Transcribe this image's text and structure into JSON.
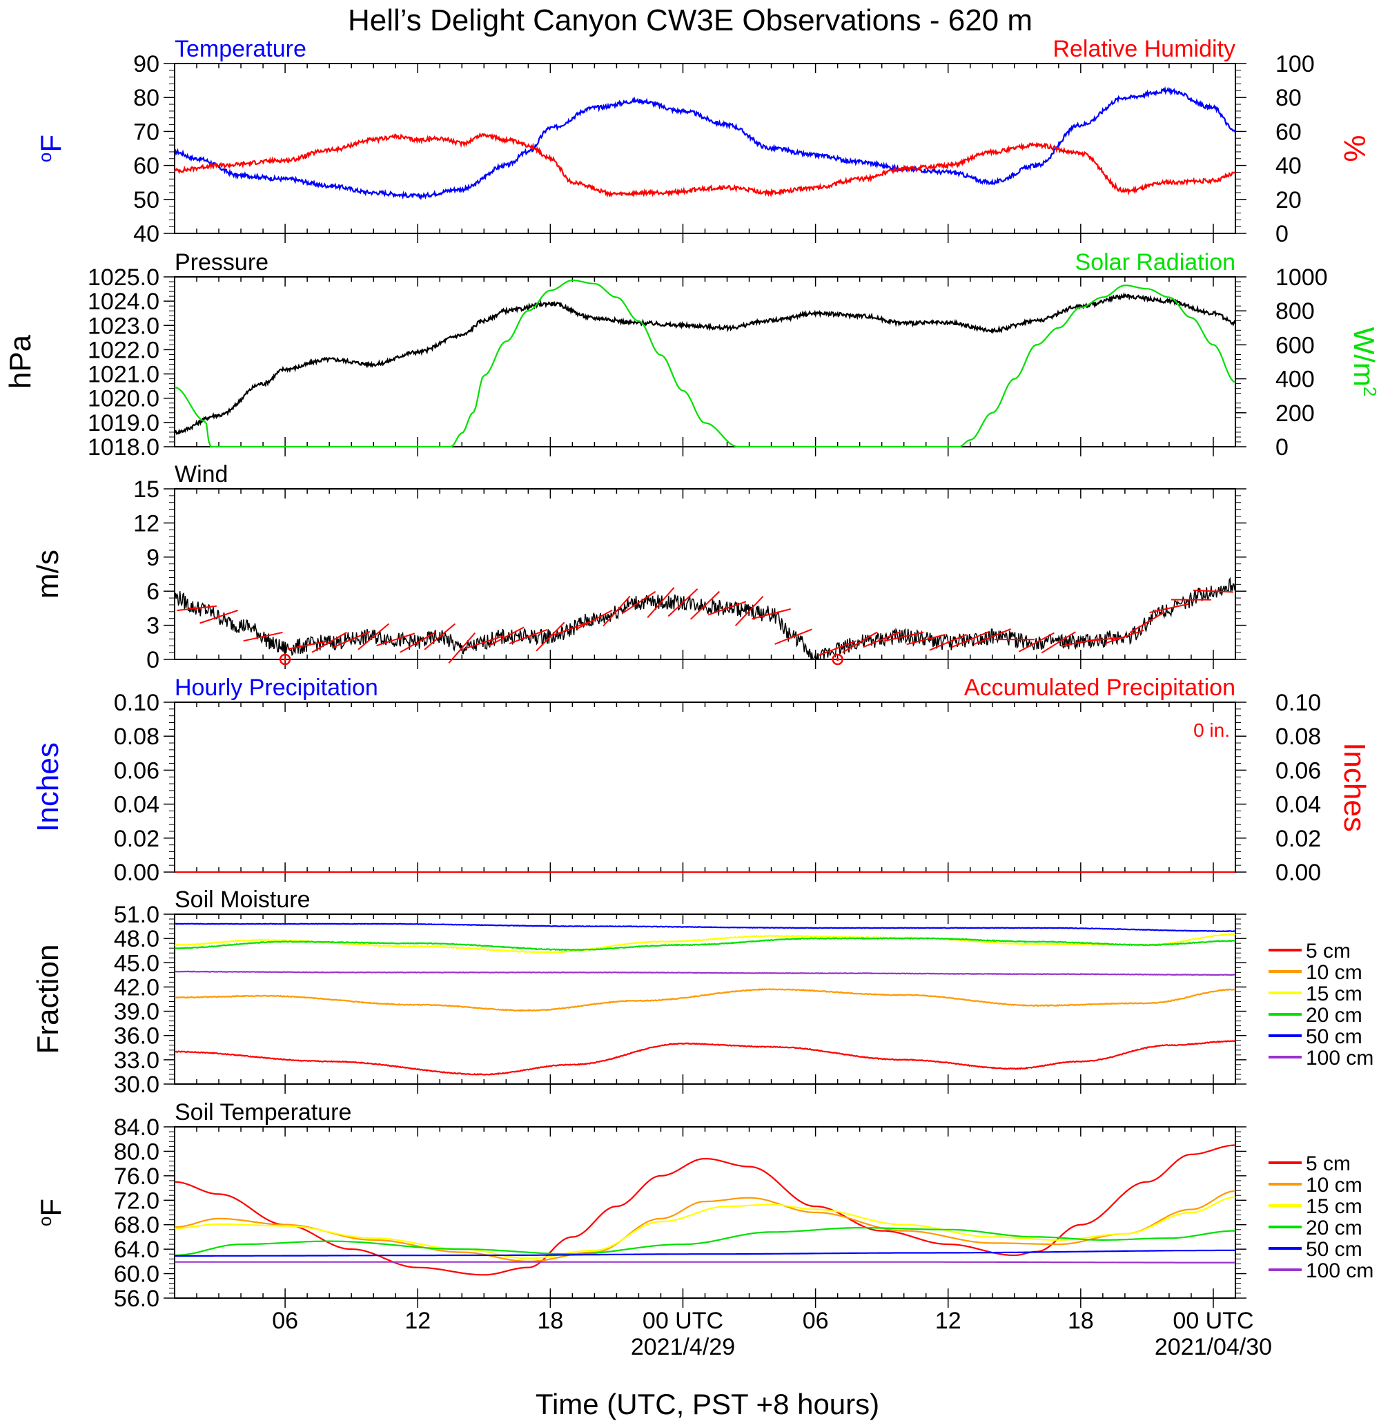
{
  "title": "Hell’s Delight Canyon CW3E Observations - 620 m",
  "xlabel": "Time (UTC, PST +8 hours)",
  "x_tick_labels": [
    "06",
    "12",
    "18",
    "00 UTC",
    "06",
    "12",
    "18",
    "00 UTC"
  ],
  "date_labels": [
    "2021/4/29",
    "2021/04/30"
  ],
  "time_range_hours": [
    1.0,
    49.0
  ],
  "colors": {
    "blue": "#0000ff",
    "red": "#ff0000",
    "green": "#00e000",
    "black": "#000000"
  },
  "chart_data": [
    {
      "type": "line",
      "title_left": "Temperature",
      "title_right": "Relative Humidity",
      "ylabel_left": "oF",
      "ylabel_right": "%",
      "ylim_left": [
        40,
        90
      ],
      "yticks_left": [
        "40",
        "50",
        "60",
        "70",
        "80",
        "90"
      ],
      "ylim_right": [
        0,
        100
      ],
      "yticks_right": [
        "0",
        "20",
        "40",
        "60",
        "80",
        "100"
      ],
      "series": [
        {
          "axis": "left",
          "color": "#0000ff",
          "noise": 0.6,
          "x": [
            1,
            2,
            4,
            6,
            8,
            10,
            12,
            14,
            16,
            17,
            18,
            20,
            22,
            24,
            26,
            28,
            30,
            32,
            34,
            36,
            38,
            40,
            42,
            44,
            46,
            48,
            49
          ],
          "y": [
            64,
            62,
            57,
            56,
            54,
            52,
            51,
            53,
            60,
            64,
            71,
            77,
            79,
            76,
            72,
            65,
            63,
            61,
            59,
            58,
            55,
            60,
            72,
            80,
            82,
            77,
            70
          ]
        },
        {
          "axis": "right",
          "color": "#ff0000",
          "noise": 1.2,
          "x": [
            1,
            3,
            6,
            8,
            10,
            11,
            12,
            13,
            14,
            15,
            16,
            17,
            18,
            19,
            21,
            23,
            26,
            28,
            30,
            32,
            34,
            36,
            38,
            40,
            42,
            44,
            46,
            48,
            49
          ],
          "y": [
            37,
            40,
            43,
            49,
            55,
            57,
            55,
            56,
            53,
            58,
            55,
            52,
            44,
            30,
            23,
            24,
            27,
            24,
            27,
            32,
            38,
            40,
            48,
            52,
            47,
            25,
            30,
            31,
            35
          ]
        }
      ]
    },
    {
      "type": "line",
      "title_left": "Pressure",
      "title_right": "Solar Radiation",
      "ylabel_left": "hPa",
      "ylabel_right": "W/m2",
      "ylim_left": [
        1018.0,
        1025.0
      ],
      "yticks_left": [
        "1018.0",
        "1019.0",
        "1020.0",
        "1021.0",
        "1022.0",
        "1023.0",
        "1024.0",
        "1025.0"
      ],
      "ylim_right": [
        0,
        1000
      ],
      "yticks_right": [
        "0",
        "200",
        "400",
        "600",
        "800",
        "1000"
      ],
      "series": [
        {
          "axis": "left",
          "color": "#000000",
          "noise": 0.08,
          "x": [
            1,
            3,
            5,
            6,
            8,
            10,
            12,
            14,
            15,
            16,
            18,
            20,
            22,
            24,
            26,
            28,
            30,
            32,
            34,
            36,
            38,
            40,
            42,
            44,
            46,
            48,
            49
          ],
          "y": [
            1018.6,
            1019.3,
            1020.6,
            1021.2,
            1021.6,
            1021.4,
            1021.9,
            1022.6,
            1023.2,
            1023.6,
            1023.9,
            1023.3,
            1023.1,
            1023.0,
            1022.9,
            1023.2,
            1023.5,
            1023.4,
            1023.1,
            1023.1,
            1022.8,
            1023.2,
            1023.8,
            1024.2,
            1024.0,
            1023.5,
            1023.1
          ]
        },
        {
          "axis": "right",
          "color": "#00e000",
          "noise": 0.0,
          "x": [
            1,
            2.4,
            2.6,
            3,
            6,
            10,
            13.5,
            14,
            14.5,
            15,
            16,
            17,
            18,
            19,
            20,
            21,
            22,
            23,
            24,
            25,
            26.5,
            27,
            28,
            30,
            34,
            36.5,
            37,
            38,
            39,
            40,
            41,
            42,
            43,
            44,
            45,
            46,
            47,
            48,
            49
          ],
          "y": [
            350,
            150,
            0,
            0,
            0,
            0,
            0,
            80,
            200,
            420,
            620,
            800,
            920,
            980,
            960,
            880,
            740,
            540,
            330,
            140,
            0,
            0,
            0,
            0,
            0,
            0,
            40,
            200,
            400,
            600,
            700,
            820,
            880,
            950,
            930,
            880,
            760,
            600,
            380
          ]
        }
      ]
    },
    {
      "type": "line",
      "title_left": "Wind",
      "ylabel_left": "m/s",
      "ylim_left": [
        0,
        15
      ],
      "yticks_left": [
        "0",
        "3",
        "6",
        "9",
        "12",
        "15"
      ],
      "series": [
        {
          "axis": "left",
          "color": "#000000",
          "noise": 0.7,
          "x": [
            1,
            2,
            4,
            6,
            8,
            10,
            12,
            13,
            14,
            16,
            18,
            20,
            22,
            24,
            26,
            28,
            29,
            30,
            31,
            32,
            34,
            36,
            38,
            40,
            42,
            44,
            46,
            48,
            49
          ],
          "y": [
            5.5,
            4.5,
            3.0,
            1.0,
            1.5,
            2.0,
            1.5,
            2.0,
            1.0,
            2.0,
            2.0,
            3.5,
            5.0,
            5.0,
            4.5,
            4.0,
            2.0,
            0.0,
            1.0,
            1.5,
            2.0,
            1.5,
            2.0,
            1.5,
            1.5,
            2.0,
            4.5,
            6.0,
            6.5
          ]
        }
      ],
      "wind_barbs_x": [
        2,
        3,
        5,
        7,
        8,
        9,
        10,
        11,
        12,
        13,
        14,
        15,
        16,
        17,
        18,
        19,
        20,
        21,
        22,
        23,
        24,
        25,
        26,
        27,
        28,
        29,
        31,
        32,
        33,
        34,
        35,
        36,
        37,
        38,
        39,
        40,
        41,
        42,
        43,
        44,
        45,
        46,
        47,
        48
      ],
      "calm_x": [
        6,
        31
      ]
    },
    {
      "type": "line",
      "title_left": "Hourly Precipitation",
      "title_right": "Accumulated Precipitation",
      "annotation": "0 in.",
      "ylabel_left": "Inches",
      "ylabel_right": "Inches",
      "ylim_left": [
        0.0,
        0.1
      ],
      "yticks_left": [
        "0.00",
        "0.02",
        "0.04",
        "0.06",
        "0.08",
        "0.10"
      ],
      "ylim_right": [
        0.0,
        0.1
      ],
      "yticks_right": [
        "0.00",
        "0.02",
        "0.04",
        "0.06",
        "0.08",
        "0.10"
      ],
      "series": [
        {
          "axis": "left",
          "color": "#ff0000",
          "noise": 0.0,
          "x": [
            1,
            49
          ],
          "y": [
            0.0,
            0.0
          ]
        }
      ]
    },
    {
      "type": "line",
      "title_left": "Soil Moisture",
      "ylabel_left": "Fraction",
      "ylim_left": [
        30.0,
        51.0
      ],
      "yticks_left": [
        "30.0",
        "33.0",
        "36.0",
        "39.0",
        "42.0",
        "45.0",
        "48.0",
        "51.0"
      ],
      "legend": [
        "5 cm",
        "10 cm",
        "15 cm",
        "20 cm",
        "50 cm",
        "100 cm"
      ],
      "series": [
        {
          "name": "5 cm",
          "color": "#ff0000",
          "noise": 0.05,
          "x": [
            1,
            8,
            15,
            19,
            24,
            28,
            34,
            39,
            42,
            46,
            49
          ],
          "y": [
            34.0,
            32.8,
            31.2,
            32.4,
            35.0,
            34.6,
            33.0,
            31.9,
            32.8,
            34.8,
            35.3
          ]
        },
        {
          "name": "10 cm",
          "color": "#ff9900",
          "noise": 0.05,
          "x": [
            1,
            5,
            12,
            17,
            22,
            28,
            34,
            40,
            45,
            49
          ],
          "y": [
            40.7,
            40.9,
            39.8,
            39.1,
            40.3,
            41.7,
            41.0,
            39.7,
            40.0,
            41.7
          ]
        },
        {
          "name": "15 cm",
          "color": "#ffff00",
          "noise": 0.05,
          "x": [
            1,
            5,
            12,
            18,
            23,
            28,
            34,
            40,
            45,
            49
          ],
          "y": [
            47.2,
            47.8,
            47.0,
            46.3,
            47.6,
            48.3,
            48.1,
            47.3,
            47.2,
            48.5
          ]
        },
        {
          "name": "20 cm",
          "color": "#00e000",
          "noise": 0.05,
          "x": [
            1,
            6,
            12,
            19,
            24,
            30,
            35,
            40,
            45,
            49
          ],
          "y": [
            46.8,
            47.6,
            47.4,
            46.6,
            47.2,
            48.0,
            48.0,
            47.6,
            47.2,
            47.7
          ]
        },
        {
          "name": "50 cm",
          "color": "#0000ff",
          "noise": 0.03,
          "x": [
            1,
            10,
            20,
            30,
            40,
            49
          ],
          "y": [
            49.8,
            49.8,
            49.5,
            49.3,
            49.3,
            48.9
          ]
        },
        {
          "name": "100 cm",
          "color": "#9933cc",
          "noise": 0.03,
          "x": [
            1,
            10,
            20,
            30,
            40,
            49
          ],
          "y": [
            43.9,
            43.8,
            43.8,
            43.7,
            43.6,
            43.5
          ]
        }
      ]
    },
    {
      "type": "line",
      "title_left": "Soil Temperature",
      "ylabel_left": "oF",
      "ylim_left": [
        56.0,
        84.0
      ],
      "yticks_left": [
        "56.0",
        "60.0",
        "64.0",
        "68.0",
        "72.0",
        "76.0",
        "80.0",
        "84.0"
      ],
      "legend": [
        "5 cm",
        "10 cm",
        "15 cm",
        "20 cm",
        "50 cm",
        "100 cm"
      ],
      "series": [
        {
          "name": "5 cm",
          "color": "#ff0000",
          "noise": 0.0,
          "x": [
            1,
            3,
            6,
            9,
            12,
            15,
            17,
            19,
            21,
            23,
            25,
            27,
            30,
            33,
            36,
            39,
            40,
            42,
            45,
            47,
            49
          ],
          "y": [
            75,
            73,
            68,
            64,
            61,
            59.8,
            61,
            66,
            71,
            76,
            78.8,
            77.5,
            71,
            67,
            64.8,
            63,
            63.6,
            68,
            75,
            79.5,
            81
          ]
        },
        {
          "name": "10 cm",
          "color": "#ff9900",
          "noise": 0.0,
          "x": [
            1,
            3,
            6,
            10,
            14,
            17,
            20,
            23,
            25,
            27,
            30,
            34,
            38,
            41,
            44,
            47,
            49
          ],
          "y": [
            67.6,
            69,
            68,
            65.5,
            63.5,
            62,
            63.5,
            69,
            71.8,
            72.4,
            70,
            67,
            65,
            64.8,
            66.5,
            70.5,
            73.5
          ]
        },
        {
          "name": "15 cm",
          "color": "#ffff00",
          "noise": 0.0,
          "x": [
            1,
            3,
            6,
            10,
            14,
            17,
            20,
            23,
            26,
            28,
            30,
            34,
            38,
            41,
            44,
            47,
            49
          ],
          "y": [
            67.4,
            68.1,
            67.8,
            65.8,
            64,
            62.5,
            63.8,
            68.5,
            71,
            71.3,
            70.5,
            68,
            66,
            65.5,
            66.5,
            70,
            72.5
          ]
        },
        {
          "name": "20 cm",
          "color": "#00e000",
          "noise": 0.0,
          "x": [
            1,
            4,
            8,
            14,
            19,
            24,
            28,
            32,
            36,
            40,
            43,
            46,
            49
          ],
          "y": [
            63.0,
            64.8,
            65.3,
            64.0,
            63.2,
            64.8,
            66.8,
            67.5,
            67.2,
            66.0,
            65.5,
            65.8,
            67.0
          ]
        },
        {
          "name": "50 cm",
          "color": "#0000ff",
          "noise": 0.0,
          "x": [
            1,
            15,
            25,
            35,
            49
          ],
          "y": [
            62.9,
            63.0,
            63.2,
            63.4,
            63.8
          ]
        },
        {
          "name": "100 cm",
          "color": "#9933cc",
          "noise": 0.0,
          "x": [
            1,
            15,
            25,
            35,
            49
          ],
          "y": [
            61.9,
            61.9,
            61.9,
            61.9,
            61.8
          ]
        }
      ]
    }
  ]
}
